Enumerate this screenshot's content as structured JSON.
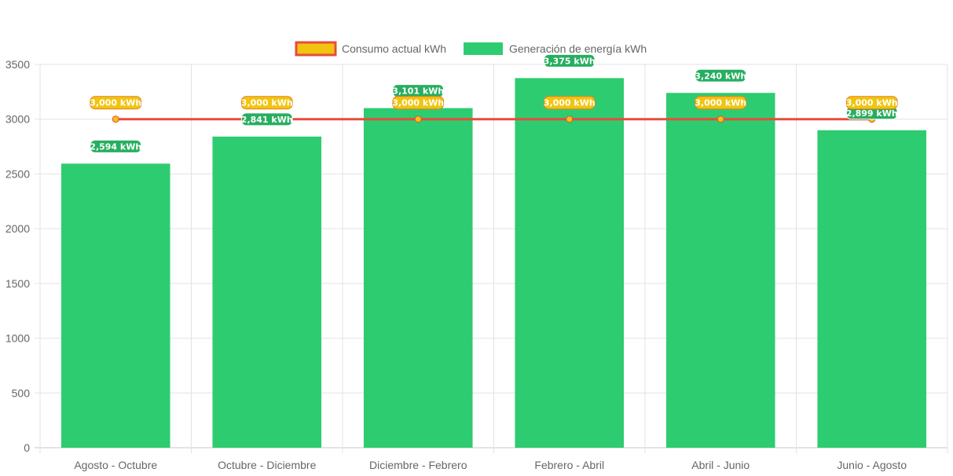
{
  "chart_data": {
    "type": "bar",
    "categories": [
      "Agosto - Octubre",
      "Octubre - Diciembre",
      "Diciembre - Febrero",
      "Febrero - Abril",
      "Abril - Junio",
      "Junio - Agosto"
    ],
    "series": [
      {
        "name": "Generación de energía kWh",
        "type": "bar",
        "values": [
          2594,
          2841,
          3101,
          3375,
          3240,
          2899
        ],
        "labels": [
          "2,594 kWh",
          "2,841 kWh",
          "3,101 kWh",
          "3,375 kWh",
          "3,240 kWh",
          "2,899 kWh"
        ],
        "color": "#2ecc71"
      },
      {
        "name": "Consumo actual kWh",
        "type": "line",
        "values": [
          3000,
          3000,
          3000,
          3000,
          3000,
          3000
        ],
        "labels": [
          "3,000 kWh",
          "3,000 kWh",
          "3,000 kWh",
          "3,000 kWh",
          "3,000 kWh",
          "3,000 kWh"
        ],
        "color": "#f1c40f",
        "border_color": "#e74c3c"
      }
    ],
    "ylim": [
      0,
      3500
    ],
    "yticks": [
      0,
      500,
      1000,
      1500,
      2000,
      2500,
      3000,
      3500
    ],
    "grid": true,
    "legend_position": "top-center",
    "title": "",
    "xlabel": "",
    "ylabel": ""
  }
}
